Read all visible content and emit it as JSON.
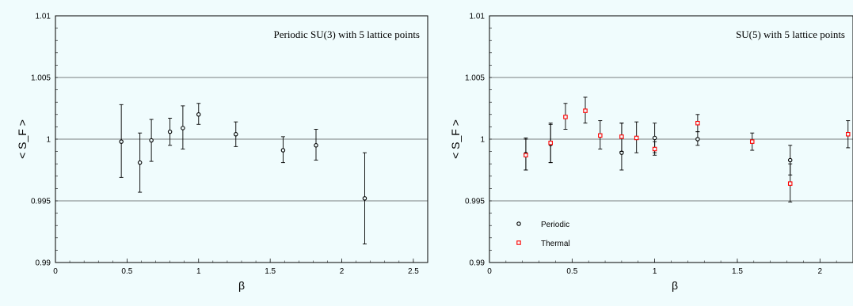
{
  "chart_data": [
    {
      "type": "scatter",
      "title": "Periodic SU(3) with 5 lattice points",
      "xlabel": "β",
      "ylabel": "< S_F >",
      "xlim": [
        0,
        2.6
      ],
      "ylim": [
        0.99,
        1.01
      ],
      "xticks": [
        "0",
        "0.5",
        "1",
        "1.5",
        "2",
        "2.5"
      ],
      "yticks": [
        "0.99",
        "0.995",
        "1",
        "1.005",
        "1.01"
      ],
      "grid": "horizontal",
      "series": [
        {
          "color": "#000000",
          "marker": "circle",
          "points": [
            {
              "x": 0.46,
              "y": 0.9998,
              "lo": 0.9969,
              "hi": 1.0028
            },
            {
              "x": 0.59,
              "y": 0.9981,
              "lo": 0.9957,
              "hi": 1.0005
            },
            {
              "x": 0.67,
              "y": 0.9999,
              "lo": 0.9982,
              "hi": 1.0016
            },
            {
              "x": 0.8,
              "y": 1.0006,
              "lo": 0.9995,
              "hi": 1.0017
            },
            {
              "x": 0.89,
              "y": 1.0009,
              "lo": 0.9992,
              "hi": 1.0027
            },
            {
              "x": 1.0,
              "y": 1.002,
              "lo": 1.0012,
              "hi": 1.0029
            },
            {
              "x": 1.26,
              "y": 1.0004,
              "lo": 0.9994,
              "hi": 1.0014
            },
            {
              "x": 1.59,
              "y": 0.9991,
              "lo": 0.9981,
              "hi": 1.0002
            },
            {
              "x": 1.82,
              "y": 0.9995,
              "lo": 0.9983,
              "hi": 1.0008
            },
            {
              "x": 2.16,
              "y": 0.9952,
              "lo": 0.9915,
              "hi": 0.9989
            }
          ]
        }
      ]
    },
    {
      "type": "scatter",
      "title": "SU(5) with 5 lattice points",
      "xlabel": "β",
      "ylabel": "< S_F >",
      "xlim": [
        0,
        2.2
      ],
      "ylim": [
        0.99,
        1.01
      ],
      "xticks": [
        "0",
        "0.5",
        "1",
        "1.5",
        "2"
      ],
      "yticks": [
        "0.99",
        "0.995",
        "1",
        "1.005",
        "1.01"
      ],
      "grid": "horizontal",
      "legend_position": "bottom-left",
      "series": [
        {
          "name": "Periodic",
          "color": "#000000",
          "marker": "circle",
          "points": [
            {
              "x": 0.22,
              "y": 0.9988,
              "lo": 0.9975,
              "hi": 1.0001
            },
            {
              "x": 0.37,
              "y": 0.9996,
              "lo": 0.9981,
              "hi": 1.0012
            },
            {
              "x": 0.8,
              "y": 0.9989,
              "lo": 0.9975,
              "hi": 1.0013
            },
            {
              "x": 1.0,
              "y": 1.0001,
              "lo": 0.9989,
              "hi": 1.0013
            },
            {
              "x": 1.26,
              "y": 1.0,
              "lo": 0.9995,
              "hi": 1.0006
            },
            {
              "x": 1.82,
              "y": 0.9983,
              "lo": 0.9971,
              "hi": 0.9995
            }
          ]
        },
        {
          "name": "Thermal",
          "color": "#ff0000",
          "marker": "square",
          "points": [
            {
              "x": 0.22,
              "y": 0.9987,
              "lo": 0.9975,
              "hi": 1.0
            },
            {
              "x": 0.37,
              "y": 0.9997,
              "lo": 0.9981,
              "hi": 1.0013
            },
            {
              "x": 0.46,
              "y": 1.0018,
              "lo": 1.0008,
              "hi": 1.0029
            },
            {
              "x": 0.58,
              "y": 1.0023,
              "lo": 1.0013,
              "hi": 1.0034
            },
            {
              "x": 0.67,
              "y": 1.0003,
              "lo": 0.9992,
              "hi": 1.0015
            },
            {
              "x": 0.8,
              "y": 1.0002,
              "lo": 0.999,
              "hi": 1.0013
            },
            {
              "x": 0.89,
              "y": 1.0001,
              "lo": 0.9989,
              "hi": 1.0014
            },
            {
              "x": 1.0,
              "y": 0.9992,
              "lo": 0.9987,
              "hi": 0.9998
            },
            {
              "x": 1.26,
              "y": 1.0013,
              "lo": 1.0006,
              "hi": 1.002
            },
            {
              "x": 1.59,
              "y": 0.9998,
              "lo": 0.9991,
              "hi": 1.0005
            },
            {
              "x": 1.82,
              "y": 0.9964,
              "lo": 0.9949,
              "hi": 0.998
            },
            {
              "x": 2.17,
              "y": 1.0004,
              "lo": 0.9993,
              "hi": 1.0015
            }
          ]
        }
      ]
    }
  ]
}
